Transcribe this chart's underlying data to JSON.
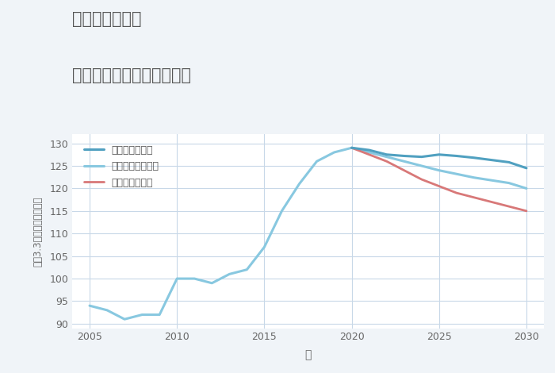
{
  "title_line1": "兵庫県妻鹿駅の",
  "title_line2": "中古マンションの価格推移",
  "xlabel": "年",
  "ylabel": "坪（3.3㎡）単価（万円）",
  "xlim": [
    2004,
    2031
  ],
  "ylim": [
    89,
    132
  ],
  "yticks": [
    90,
    95,
    100,
    105,
    110,
    115,
    120,
    125,
    130
  ],
  "xticks": [
    2005,
    2010,
    2015,
    2020,
    2025,
    2030
  ],
  "background_color": "#f0f4f8",
  "plot_bg_color": "#ffffff",
  "grid_color": "#c8d8e8",
  "normal_color": "#88c8e0",
  "good_color": "#50a0c0",
  "bad_color": "#d87878",
  "normal_label": "ノーマルシナリオ",
  "good_label": "グッドシナリオ",
  "bad_label": "バッドシナリオ",
  "historical_years": [
    2005,
    2006,
    2007,
    2008,
    2009,
    2010,
    2011,
    2012,
    2013,
    2014,
    2015,
    2016,
    2017,
    2018,
    2019,
    2020
  ],
  "historical_values": [
    94,
    93,
    91,
    92,
    92,
    100,
    100,
    99,
    101,
    102,
    107,
    115,
    121,
    126,
    128,
    129
  ],
  "future_years": [
    2020,
    2021,
    2022,
    2023,
    2024,
    2025,
    2026,
    2027,
    2028,
    2029,
    2030
  ],
  "good_values": [
    129,
    128.5,
    127.5,
    127.2,
    127.0,
    127.5,
    127.2,
    126.8,
    126.3,
    125.8,
    124.5
  ],
  "normal_values": [
    129,
    128.0,
    127.0,
    126.0,
    125.0,
    124.0,
    123.2,
    122.4,
    121.8,
    121.2,
    120.0
  ],
  "bad_values": [
    129,
    127.5,
    126.0,
    124.0,
    122.0,
    120.5,
    119.0,
    118.0,
    117.0,
    116.0,
    115.0
  ]
}
